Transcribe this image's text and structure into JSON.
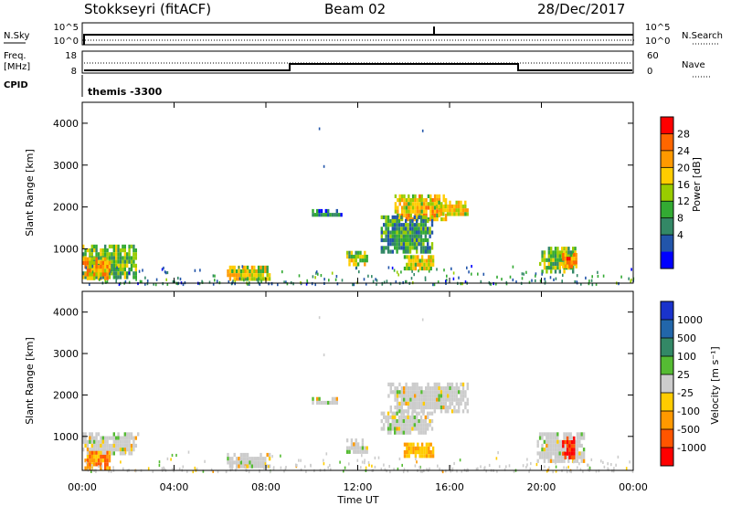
{
  "header": {
    "station": "Stokkseyri (fitACF)",
    "beam": "Beam 02",
    "date": "28/Dec/2017"
  },
  "panel_nsky": {
    "left_label": "N.Sky",
    "left_tick_top": "10^5",
    "left_tick_bottom": "10^0",
    "right_tick_top": "10^5",
    "right_tick_bottom": "10^0",
    "right_label": "N.Search"
  },
  "panel_freq": {
    "left_label_1": "Freq.",
    "left_label_2": "[MHz]",
    "left_tick_top": "18",
    "left_tick_bottom": "8",
    "right_tick_top": "60",
    "right_tick_bottom": "0",
    "right_label": "Nave"
  },
  "panel_cpid": {
    "label": "CPID",
    "value": "themis -3300"
  },
  "power_panel": {
    "ylabel": "Slant Range [km]",
    "yticks": [
      "4000",
      "3000",
      "2000",
      "1000"
    ],
    "colorbar_label": "Power [dB]",
    "colorbar_ticks": [
      "28",
      "24",
      "20",
      "16",
      "12",
      "8",
      "4"
    ],
    "colorbar_colors": [
      "#ff0000",
      "#ff6600",
      "#ff9900",
      "#ffcc00",
      "#99cc00",
      "#33aa33",
      "#338866",
      "#2255aa",
      "#0000ff"
    ]
  },
  "velocity_panel": {
    "ylabel": "Slant Range [km]",
    "yticks": [
      "4000",
      "3000",
      "2000",
      "1000"
    ],
    "colorbar_label": "Velocity [m s⁻¹]",
    "colorbar_ticks": [
      "1000",
      "500",
      "100",
      "25",
      "-25",
      "-100",
      "-500",
      "-1000"
    ],
    "colorbar_colors": [
      "#1a33cc",
      "#2266aa",
      "#338866",
      "#55bb33",
      "#cccccc",
      "#ffcc00",
      "#ff9900",
      "#ff5500",
      "#ff0000"
    ]
  },
  "xaxis": {
    "ticks": [
      "00:00",
      "04:00",
      "08:00",
      "12:00",
      "16:00",
      "20:00",
      "00:00"
    ],
    "label": "Time UT"
  },
  "chart_data": {
    "type": "heatmap",
    "x_unit": "hours UT",
    "x_range": [
      0,
      24
    ],
    "y_range_km": [
      180,
      4500
    ],
    "power_regions": [
      {
        "t": [
          0.0,
          2.3
        ],
        "r": [
          300,
          1100
        ],
        "db": 14
      },
      {
        "t": [
          0.0,
          1.2
        ],
        "r": [
          300,
          800
        ],
        "db": 22
      },
      {
        "t": [
          6.3,
          8.2
        ],
        "r": [
          250,
          600
        ],
        "db": 18
      },
      {
        "t": [
          10.0,
          11.3
        ],
        "r": [
          1800,
          1950
        ],
        "db": 6
      },
      {
        "t": [
          11.5,
          12.4
        ],
        "r": [
          650,
          950
        ],
        "db": 16
      },
      {
        "t": [
          13.6,
          15.8
        ],
        "r": [
          1700,
          2300
        ],
        "db": 20
      },
      {
        "t": [
          15.4,
          16.8
        ],
        "r": [
          1800,
          2150
        ],
        "db": 18
      },
      {
        "t": [
          13.0,
          15.2
        ],
        "r": [
          900,
          1800
        ],
        "db": 10
      },
      {
        "t": [
          14.0,
          15.3
        ],
        "r": [
          550,
          850
        ],
        "db": 18
      },
      {
        "t": [
          19.9,
          21.5
        ],
        "r": [
          500,
          1050
        ],
        "db": 14
      },
      {
        "t": [
          20.9,
          21.5
        ],
        "r": [
          600,
          900
        ],
        "db": 26
      }
    ],
    "velocity_regions": [
      {
        "t": [
          0.0,
          2.4
        ],
        "r": [
          600,
          1100
        ],
        "v": 0
      },
      {
        "t": [
          0.0,
          1.2
        ],
        "r": [
          250,
          650
        ],
        "v": -300
      },
      {
        "t": [
          6.3,
          8.2
        ],
        "r": [
          250,
          600
        ],
        "v": 0
      },
      {
        "t": [
          10.0,
          11.3
        ],
        "r": [
          1800,
          1950
        ],
        "v": 0
      },
      {
        "t": [
          11.5,
          12.4
        ],
        "r": [
          650,
          950
        ],
        "v": 0
      },
      {
        "t": [
          13.3,
          16.8
        ],
        "r": [
          1650,
          2300
        ],
        "v": 0
      },
      {
        "t": [
          13.0,
          15.2
        ],
        "r": [
          1050,
          1600
        ],
        "v": 0
      },
      {
        "t": [
          14.0,
          15.3
        ],
        "r": [
          550,
          850
        ],
        "v": -100
      },
      {
        "t": [
          19.8,
          21.9
        ],
        "r": [
          400,
          1100
        ],
        "v": 0
      },
      {
        "t": [
          20.9,
          21.4
        ],
        "r": [
          500,
          1000
        ],
        "v": -500
      }
    ]
  }
}
